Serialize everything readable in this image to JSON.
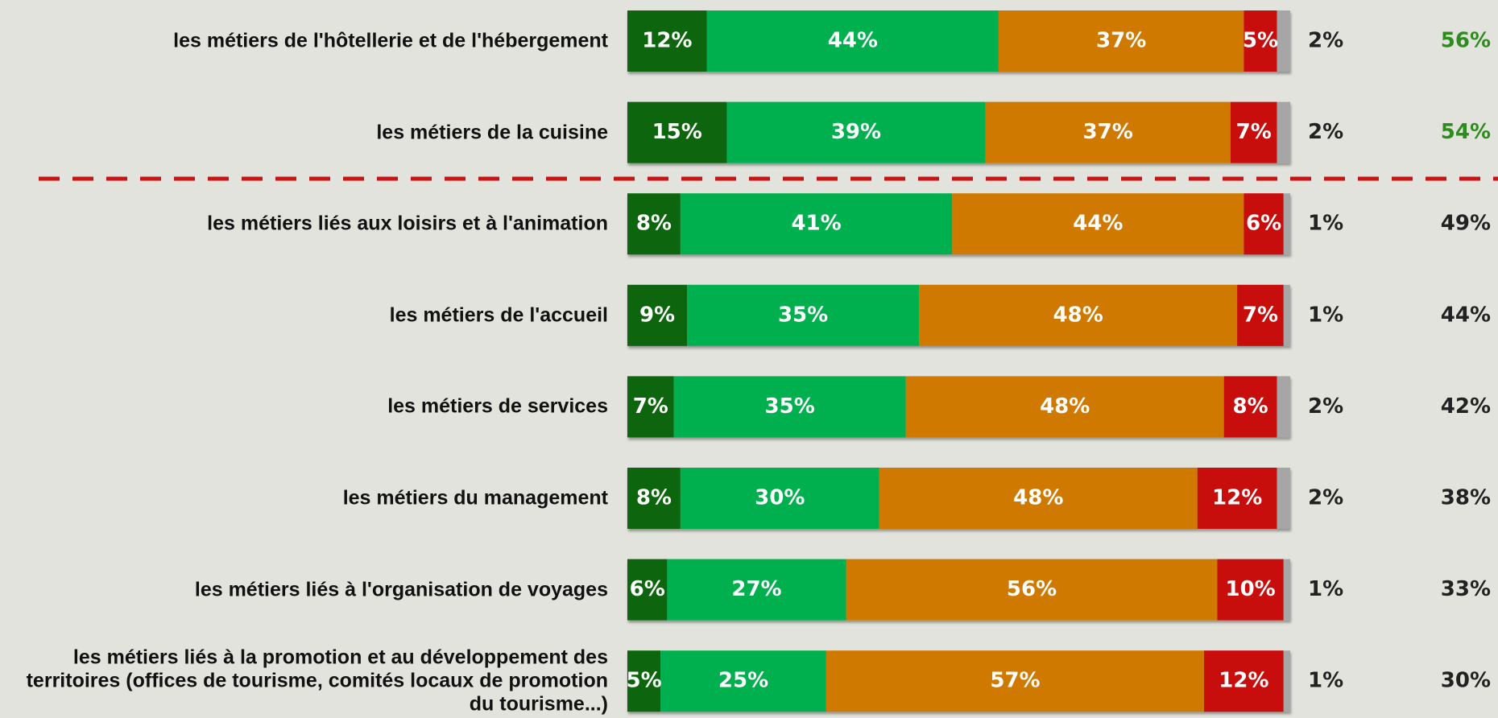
{
  "chart_data": {
    "type": "stacked-bar-horizontal",
    "categories": [
      "les métiers de l'hôtellerie et de l'hébergement",
      "les métiers de la cuisine",
      "les métiers liés aux loisirs et à l'animation",
      "les métiers de l'accueil",
      "les métiers de services",
      "les métiers du management",
      "les métiers liés à l'organisation de voyages",
      "les métiers liés à la promotion et au développement des territoires (offices de tourisme, comités locaux de promotion du tourisme...)"
    ],
    "xlim": [
      0,
      100
    ],
    "series": [
      {
        "color": "#0b650b",
        "values": [
          12,
          15,
          8,
          9,
          7,
          8,
          6,
          5
        ],
        "value_labels": [
          "12%",
          "15%",
          "8%",
          "9%",
          "7%",
          "8%",
          "6%",
          "5%"
        ]
      },
      {
        "color": "#00b050",
        "values": [
          44,
          39,
          41,
          35,
          35,
          30,
          27,
          25
        ],
        "value_labels": [
          "44%",
          "39%",
          "41%",
          "35%",
          "35%",
          "30%",
          "27%",
          "25%"
        ]
      },
      {
        "color": "#d07904",
        "values": [
          37,
          37,
          44,
          48,
          48,
          48,
          56,
          57
        ],
        "value_labels": [
          "37%",
          "37%",
          "44%",
          "48%",
          "48%",
          "48%",
          "56%",
          "57%"
        ]
      },
      {
        "color": "#c80a0a",
        "values": [
          5,
          7,
          6,
          7,
          8,
          12,
          10,
          12
        ],
        "value_labels": [
          "5%",
          "7%",
          "6%",
          "7%",
          "8%",
          "12%",
          "10%",
          "12%"
        ]
      },
      {
        "color": "#a6a6a6",
        "values": [
          2,
          2,
          1,
          1,
          2,
          2,
          1,
          1
        ],
        "value_labels": [
          "2%",
          "2%",
          "1%",
          "1%",
          "2%",
          "2%",
          "1%",
          "1%"
        ]
      }
    ],
    "totals": {
      "values": [
        56,
        54,
        49,
        44,
        42,
        38,
        33,
        30
      ],
      "value_labels": [
        "56%",
        "54%",
        "49%",
        "44%",
        "42%",
        "38%",
        "33%",
        "30%"
      ],
      "colors": [
        "#2e8b1e",
        "#2e8b1e",
        "#222222",
        "#222222",
        "#222222",
        "#222222",
        "#222222",
        "#222222"
      ]
    }
  }
}
